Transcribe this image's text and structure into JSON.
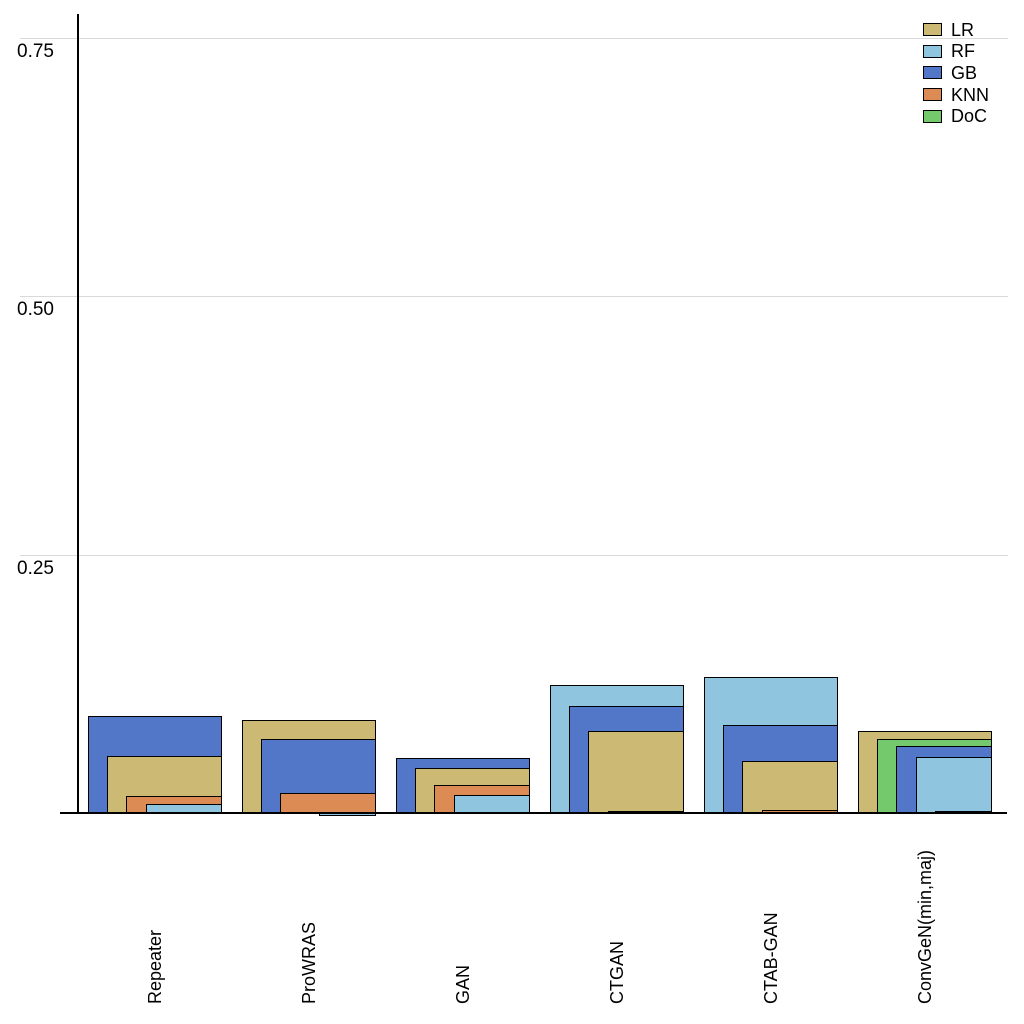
{
  "chart_data": {
    "type": "bar",
    "variant": "nested-overlapping-bars",
    "title": "",
    "xlabel": "",
    "ylabel": "",
    "background": "#ffffff",
    "grid": true,
    "gridline_color": "#d9d9d9",
    "bar_edge_color": "#000000",
    "ylim": [
      0,
      0.78
    ],
    "y_ticks": [
      0.25,
      0.5,
      0.75
    ],
    "y_tick_labels": [
      "0.25",
      "0.50",
      "0.75"
    ],
    "categories": [
      "Repeater",
      "ProWRAS",
      "GAN",
      "CTGAN",
      "CTAB-GAN",
      "ConvGeN(min,maj)"
    ],
    "series": [
      {
        "name": "LR",
        "color": "#CCB974",
        "values": [
          0.055,
          0.09,
          0.044,
          0.079,
          0.05,
          0.079
        ]
      },
      {
        "name": "RF",
        "color": "#8FC5DF",
        "values": [
          0.009,
          -0.003,
          0.017,
          0.124,
          0.132,
          0.054
        ]
      },
      {
        "name": "GB",
        "color": "#5277C8",
        "values": [
          0.094,
          0.072,
          0.053,
          0.103,
          0.085,
          0.065
        ]
      },
      {
        "name": "KNN",
        "color": "#DD8B54",
        "values": [
          0.016,
          0.019,
          0.027,
          0.002,
          0.003,
          0.002
        ]
      },
      {
        "name": "DoC",
        "color": "#74C96C",
        "values": [
          0.0,
          0.0,
          0.0,
          0.0,
          0.0,
          0.072
        ]
      }
    ],
    "legend_position": "top-right",
    "legend_entries": [
      "LR",
      "RF",
      "GB",
      "KNN",
      "DoC"
    ]
  }
}
